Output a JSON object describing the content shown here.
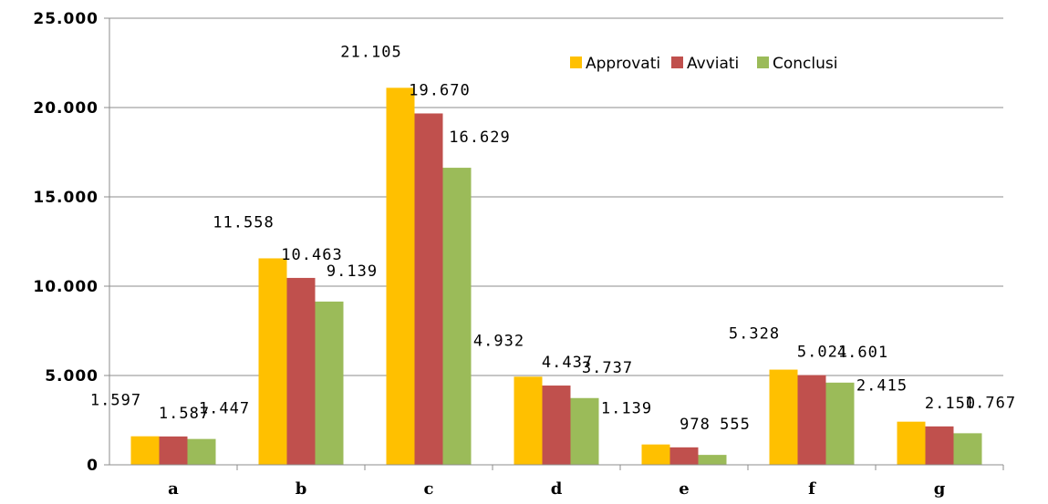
{
  "chart_data": {
    "type": "bar",
    "title": "",
    "xlabel": "",
    "ylabel": "",
    "categories": [
      "a",
      "b",
      "c",
      "d",
      "e",
      "f",
      "g"
    ],
    "ylim": [
      0,
      25000
    ],
    "ytick_values": [
      0,
      5000,
      10000,
      15000,
      20000,
      25000
    ],
    "ytick_labels": [
      "0",
      "5.000",
      "10.000",
      "15.000",
      "20.000",
      "25.000"
    ],
    "grid": true,
    "legend_position": "top-right",
    "series": [
      {
        "name": "Approvati",
        "color": "#FFC000",
        "values": [
          1597,
          11558,
          21105,
          4932,
          1139,
          5328,
          2415
        ],
        "labels": [
          "1.597",
          "11.558",
          "21.105",
          "4.932",
          "1.139",
          "5.328",
          "2.415"
        ]
      },
      {
        "name": "Avviati",
        "color": "#C0504D",
        "values": [
          1587,
          10463,
          19670,
          4437,
          978,
          5021,
          2150
        ],
        "labels": [
          "1.587",
          "10.463",
          "19.670",
          "4.437",
          "978",
          "5.021",
          "2.150"
        ]
      },
      {
        "name": "Conclusi",
        "color": "#9BBB59",
        "values": [
          1447,
          9139,
          16629,
          3737,
          555,
          4601,
          1767
        ],
        "labels": [
          "1.447",
          "9.139",
          "16.629",
          "3.737",
          "555",
          "4.601",
          "1.767"
        ]
      }
    ]
  }
}
